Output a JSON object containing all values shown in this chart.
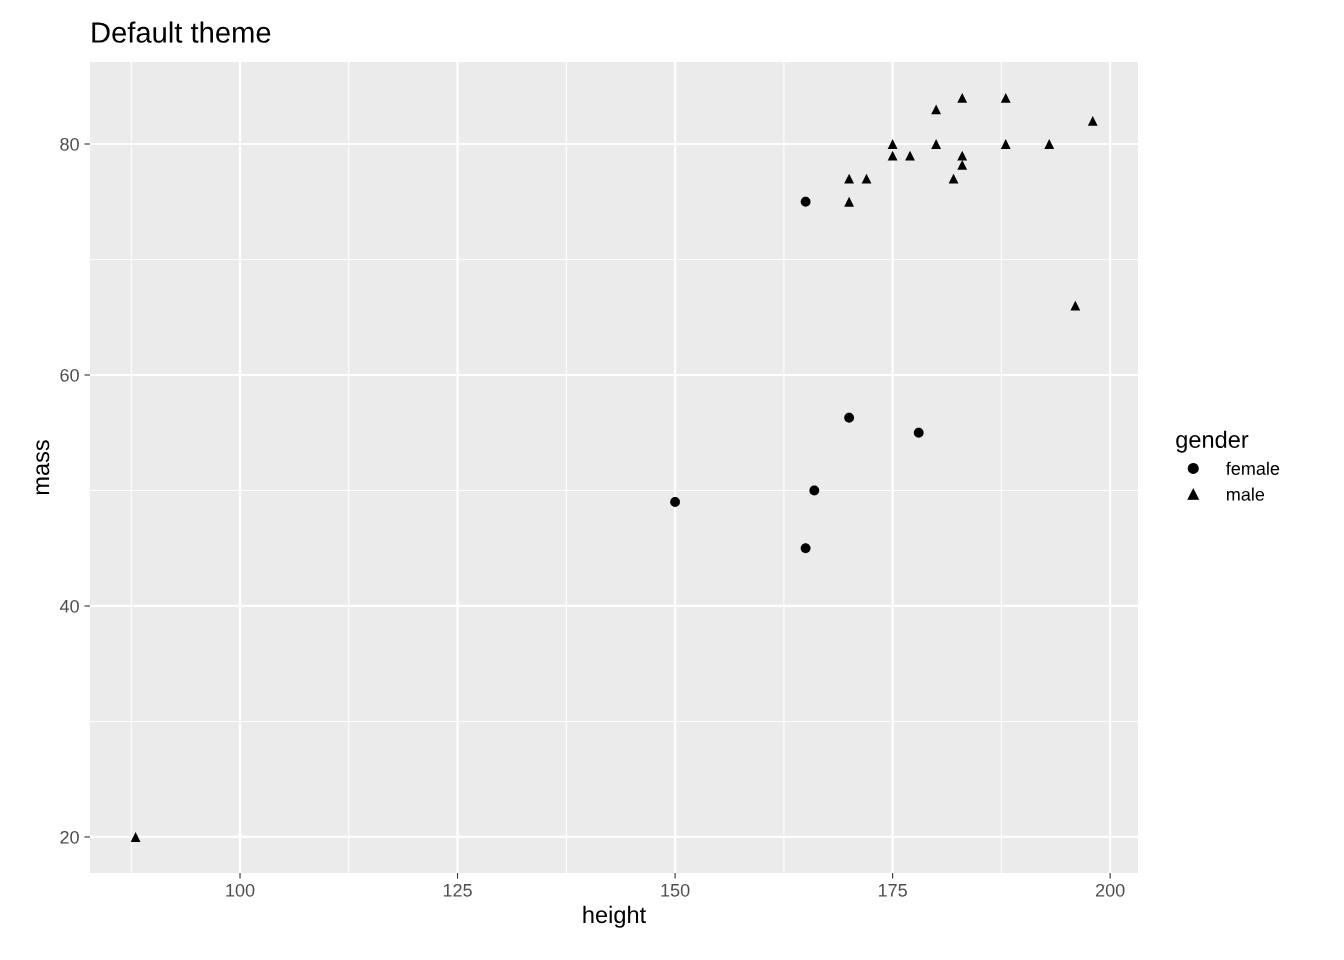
{
  "chart_data": {
    "type": "scatter",
    "title": "Default theme",
    "xlabel": "height",
    "ylabel": "mass",
    "legend_title": "gender",
    "legend": "right",
    "grid": true,
    "xlim": [
      82.76,
      203.2
    ],
    "xticks": [
      100,
      125,
      150,
      175,
      200
    ],
    "ylim": [
      16.88,
      87.1
    ],
    "yticks": [
      20,
      40,
      60,
      80
    ],
    "series": [
      {
        "name": "female",
        "color": "#000000",
        "marker": "circle",
        "x": [
          165,
          150,
          166,
          165,
          170,
          178
        ],
        "values": [
          75,
          49,
          50,
          45,
          56.3,
          55
        ]
      },
      {
        "name": "male",
        "color": "#000000",
        "marker": "triangle",
        "x": [
          88,
          170,
          170,
          172,
          175,
          175,
          177,
          180,
          180,
          182,
          183,
          183,
          183,
          188,
          188,
          193,
          196,
          198
        ],
        "values": [
          20,
          77,
          75,
          77,
          80,
          79,
          79,
          83,
          80,
          77,
          84,
          79,
          78.2,
          84,
          80,
          80,
          66,
          82
        ]
      }
    ]
  }
}
